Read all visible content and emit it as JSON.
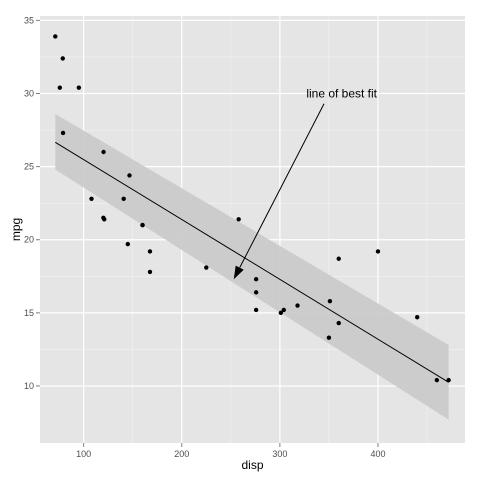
{
  "chart_data": {
    "type": "scatter",
    "xlabel": "disp",
    "ylabel": "mpg",
    "xlim": [
      55.5,
      488.7
    ],
    "ylim": [
      6.1,
      35.3
    ],
    "x_ticks": [
      100,
      200,
      300,
      400
    ],
    "y_ticks": [
      10,
      15,
      20,
      25,
      30,
      35
    ],
    "x_minor_ticks": [
      150,
      250,
      350,
      450
    ],
    "y_minor_ticks": [
      12.5,
      17.5,
      22.5,
      27.5,
      32.5
    ],
    "grid": true,
    "points": [
      {
        "x": 160,
        "y": 21.0
      },
      {
        "x": 160,
        "y": 21.0
      },
      {
        "x": 108,
        "y": 22.8
      },
      {
        "x": 258,
        "y": 21.4
      },
      {
        "x": 360,
        "y": 18.7
      },
      {
        "x": 225,
        "y": 18.1
      },
      {
        "x": 360,
        "y": 14.3
      },
      {
        "x": 146.7,
        "y": 24.4
      },
      {
        "x": 140.8,
        "y": 22.8
      },
      {
        "x": 167.6,
        "y": 19.2
      },
      {
        "x": 167.6,
        "y": 17.8
      },
      {
        "x": 275.8,
        "y": 16.4
      },
      {
        "x": 275.8,
        "y": 17.3
      },
      {
        "x": 275.8,
        "y": 15.2
      },
      {
        "x": 472,
        "y": 10.4
      },
      {
        "x": 460,
        "y": 10.4
      },
      {
        "x": 440,
        "y": 14.7
      },
      {
        "x": 78.7,
        "y": 32.4
      },
      {
        "x": 75.7,
        "y": 30.4
      },
      {
        "x": 71.1,
        "y": 33.9
      },
      {
        "x": 120.1,
        "y": 21.5
      },
      {
        "x": 318,
        "y": 15.5
      },
      {
        "x": 304,
        "y": 15.2
      },
      {
        "x": 350,
        "y": 13.3
      },
      {
        "x": 400,
        "y": 19.2
      },
      {
        "x": 79,
        "y": 27.3
      },
      {
        "x": 120.3,
        "y": 26.0
      },
      {
        "x": 95.1,
        "y": 30.4
      },
      {
        "x": 351,
        "y": 15.8
      },
      {
        "x": 145,
        "y": 19.7
      },
      {
        "x": 301,
        "y": 15.0
      },
      {
        "x": 121,
        "y": 21.4
      }
    ],
    "fit": {
      "method": "linear",
      "x": [
        71.1,
        472
      ],
      "y": [
        26.66,
        10.25
      ],
      "ci_lower": [
        24.8,
        7.7
      ],
      "ci_upper": [
        28.6,
        12.8
      ]
    },
    "annotations": [
      {
        "text": "line of best fit",
        "text_x": 363,
        "text_y": 30.0,
        "arrow_from_x": 345,
        "arrow_from_y": 29.3,
        "arrow_to_x": 253,
        "arrow_to_y": 17.3
      }
    ]
  },
  "colors": {
    "panel": "#e5e5e5",
    "grid_major": "#ffffff",
    "grid_minor": "#f2f2f2",
    "point": "#000000",
    "fit_line": "#000000",
    "ci_band": "#c9c9c9"
  }
}
